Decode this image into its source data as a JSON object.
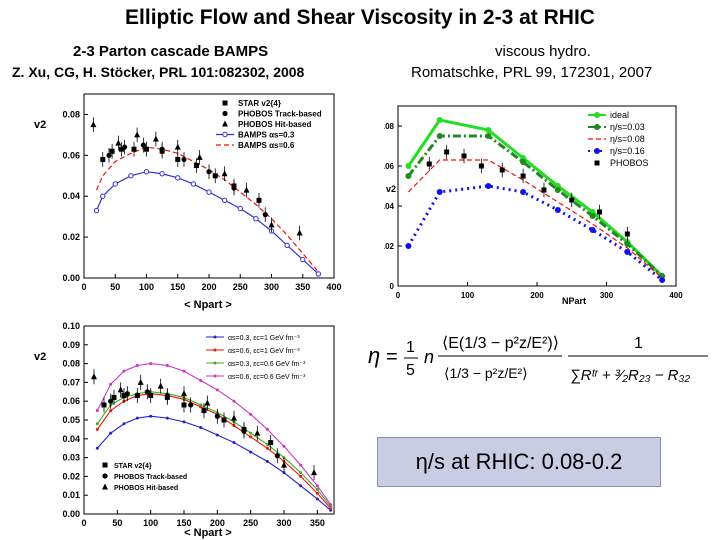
{
  "title": "Elliptic Flow and Shear Viscosity in 2-3 at RHIC",
  "left_header": {
    "line1": "2-3 Parton cascade BAMPS",
    "line2": "Z. Xu, CG, H. Stöcker, PRL 101:082302, 2008"
  },
  "right_header": {
    "line1": "viscous hydro.",
    "line2": "Romatschke, PRL 99, 172301, 2007"
  },
  "formula": {
    "description": "shear viscosity formula from 2-3 cascade",
    "eta": "η",
    "equals": "=",
    "one": "1",
    "five": "5",
    "n": "n",
    "R32": "R32",
    "R23": "R23",
    "Rtr": "Rtr"
  },
  "highlight": {
    "text": "η/s at RHIC: 0.08-0.2"
  },
  "colors": {
    "ideal": "#22dd22",
    "eta003": "#228822",
    "eta008": "#ee1111",
    "eta016": "#1111ee",
    "bamps": "#3333cc",
    "red": "#ee1111",
    "purple": "#cc33cc",
    "highlight_bg": "#c9cde4"
  },
  "chart_data": [
    {
      "id": "top-left",
      "type": "line",
      "title": "",
      "xlabel": "< Npart >",
      "ylabel": "v2",
      "xlim": [
        0,
        400
      ],
      "ylim": [
        0,
        0.09
      ],
      "xticks": [
        0,
        50,
        100,
        150,
        200,
        250,
        300,
        350,
        400
      ],
      "yticks": [
        0.0,
        0.02,
        0.04,
        0.06,
        0.08
      ],
      "ytick_labels": [
        "0.00",
        "0.02",
        "0.04",
        "0.06",
        "0.08"
      ],
      "legend": [
        "STAR v2{4}",
        "PHOBOS Track-based",
        "PHOBOS Hit-based",
        "BAMPS αs=0.3",
        "BAMPS αs=0.6"
      ],
      "series": [
        {
          "name": "BAMPS αs=0.3",
          "style": "blue-circle-line",
          "x": [
            20,
            30,
            50,
            75,
            100,
            125,
            150,
            175,
            200,
            225,
            250,
            275,
            300,
            325,
            350,
            375
          ],
          "y": [
            0.033,
            0.04,
            0.046,
            0.05,
            0.052,
            0.051,
            0.049,
            0.046,
            0.042,
            0.038,
            0.034,
            0.029,
            0.023,
            0.016,
            0.009,
            0.002
          ]
        },
        {
          "name": "BAMPS αs=0.6",
          "style": "red-dash",
          "x": [
            20,
            30,
            50,
            75,
            100,
            125,
            150,
            175,
            200,
            225,
            250,
            275,
            300,
            325,
            350,
            375
          ],
          "y": [
            0.043,
            0.05,
            0.057,
            0.061,
            0.064,
            0.063,
            0.061,
            0.057,
            0.053,
            0.048,
            0.042,
            0.036,
            0.029,
            0.021,
            0.012,
            0.003
          ]
        },
        {
          "name": "STAR v2{4}",
          "style": "square",
          "x": [
            30,
            45,
            60,
            80,
            100,
            125,
            150,
            180,
            210,
            240,
            280
          ],
          "y": [
            0.058,
            0.062,
            0.063,
            0.063,
            0.063,
            0.062,
            0.058,
            0.055,
            0.05,
            0.045,
            0.038
          ]
        },
        {
          "name": "PHOBOS Track-based",
          "style": "dot",
          "x": [
            40,
            65,
            95,
            125,
            160,
            200,
            240,
            290
          ],
          "y": [
            0.06,
            0.064,
            0.065,
            0.063,
            0.058,
            0.052,
            0.044,
            0.031
          ]
        },
        {
          "name": "PHOBOS Hit-based",
          "style": "triangle",
          "x": [
            15,
            55,
            85,
            115,
            150,
            185,
            225,
            260,
            300,
            345
          ],
          "y": [
            0.075,
            0.066,
            0.07,
            0.068,
            0.064,
            0.059,
            0.051,
            0.043,
            0.026,
            0.022
          ]
        }
      ]
    },
    {
      "id": "bottom-left",
      "type": "line",
      "title": "",
      "xlabel": "< Npart >",
      "ylabel": "v2",
      "xlim": [
        0,
        375
      ],
      "ylim": [
        0,
        0.1
      ],
      "xticks": [
        0,
        50,
        100,
        150,
        200,
        250,
        300,
        350
      ],
      "yticks": [
        0.0,
        0.01,
        0.02,
        0.03,
        0.04,
        0.05,
        0.06,
        0.07,
        0.08,
        0.09,
        0.1
      ],
      "ytick_labels": [
        "0.00",
        "0.01",
        "0.02",
        "0.03",
        "0.04",
        "0.05",
        "0.06",
        "0.07",
        "0.08",
        "0.09",
        "0.10"
      ],
      "legend": [
        "αs=0.3, εc=1 GeV fm⁻³",
        "αs=0.6, εc=1 GeV fm⁻³",
        "αs=0.3, εc=0.6 GeV fm⁻³",
        "αs=0.6, εc=0.6 GeV fm⁻³"
      ],
      "legend2": [
        "STAR v2{4}",
        "PHOBOS Track-based",
        "PHOBOS Hit-based"
      ],
      "series": [
        {
          "name": "αs=0.3, εc=1 GeV fm⁻³",
          "style": "blue",
          "x": [
            20,
            40,
            60,
            80,
            100,
            125,
            150,
            175,
            200,
            225,
            250,
            275,
            300,
            325,
            350,
            370
          ],
          "y": [
            0.035,
            0.043,
            0.048,
            0.051,
            0.052,
            0.051,
            0.049,
            0.046,
            0.042,
            0.038,
            0.033,
            0.028,
            0.022,
            0.015,
            0.008,
            0.002
          ]
        },
        {
          "name": "αs=0.6, εc=1 GeV fm⁻³",
          "style": "red",
          "x": [
            20,
            40,
            60,
            80,
            100,
            125,
            150,
            175,
            200,
            225,
            250,
            275,
            300,
            325,
            350,
            370
          ],
          "y": [
            0.045,
            0.055,
            0.06,
            0.063,
            0.064,
            0.063,
            0.061,
            0.057,
            0.053,
            0.047,
            0.041,
            0.035,
            0.028,
            0.02,
            0.011,
            0.003
          ]
        },
        {
          "name": "αs=0.3, εc=0.6 GeV fm⁻³",
          "style": "green",
          "x": [
            20,
            40,
            60,
            80,
            100,
            125,
            150,
            175,
            200,
            225,
            250,
            275,
            300,
            325,
            350,
            370
          ],
          "y": [
            0.048,
            0.058,
            0.062,
            0.064,
            0.065,
            0.064,
            0.062,
            0.058,
            0.054,
            0.049,
            0.043,
            0.037,
            0.03,
            0.022,
            0.013,
            0.004
          ]
        },
        {
          "name": "αs=0.6, εc=0.6 GeV fm⁻³",
          "style": "purple",
          "x": [
            20,
            40,
            60,
            80,
            100,
            125,
            150,
            175,
            200,
            225,
            250,
            275,
            300,
            325,
            350,
            370
          ],
          "y": [
            0.055,
            0.069,
            0.076,
            0.079,
            0.08,
            0.079,
            0.076,
            0.071,
            0.066,
            0.06,
            0.053,
            0.045,
            0.036,
            0.026,
            0.015,
            0.005
          ]
        },
        {
          "name": "STAR v2{4}",
          "style": "square",
          "x": [
            30,
            45,
            60,
            80,
            100,
            125,
            150,
            180,
            210,
            240,
            280
          ],
          "y": [
            0.058,
            0.062,
            0.063,
            0.063,
            0.063,
            0.062,
            0.058,
            0.055,
            0.05,
            0.045,
            0.038
          ]
        },
        {
          "name": "PHOBOS Track-based",
          "style": "dot",
          "x": [
            40,
            65,
            95,
            125,
            160,
            200,
            240,
            290
          ],
          "y": [
            0.06,
            0.064,
            0.065,
            0.063,
            0.058,
            0.052,
            0.044,
            0.031
          ]
        },
        {
          "name": "PHOBOS Hit-based",
          "style": "triangle",
          "x": [
            15,
            55,
            85,
            115,
            150,
            185,
            225,
            260,
            300,
            345
          ],
          "y": [
            0.073,
            0.066,
            0.07,
            0.068,
            0.064,
            0.059,
            0.051,
            0.043,
            0.026,
            0.022
          ]
        }
      ]
    },
    {
      "id": "top-right",
      "type": "line",
      "title": "",
      "xlabel": "NPart",
      "ylabel": "v2",
      "xlim": [
        0,
        400
      ],
      "ylim": [
        0,
        0.09
      ],
      "xticks": [
        0,
        100,
        200,
        300,
        400
      ],
      "yticks": [
        0,
        0.02,
        0.04,
        0.06,
        0.08
      ],
      "ytick_labels": [
        "0",
        "0.02",
        "0.04",
        "0.06",
        "0.08"
      ],
      "legend": [
        "ideal",
        "η/s=0.03",
        "η/s=0.08",
        "η/s=0.16",
        "PHOBOS"
      ],
      "series": [
        {
          "name": "ideal",
          "style": "green-solid",
          "x": [
            15,
            60,
            130,
            180,
            230,
            280,
            330,
            380
          ],
          "y": [
            0.06,
            0.083,
            0.078,
            0.064,
            0.05,
            0.037,
            0.022,
            0.005
          ]
        },
        {
          "name": "η/s=0.03",
          "style": "darkgreen-dashdot",
          "x": [
            15,
            60,
            130,
            180,
            230,
            280,
            330,
            380
          ],
          "y": [
            0.055,
            0.075,
            0.075,
            0.062,
            0.048,
            0.035,
            0.021,
            0.005
          ]
        },
        {
          "name": "η/s=0.08",
          "style": "red-dash",
          "x": [
            15,
            60,
            130,
            180,
            230,
            280,
            330,
            380
          ],
          "y": [
            0.047,
            0.063,
            0.063,
            0.053,
            0.042,
            0.031,
            0.019,
            0.004
          ]
        },
        {
          "name": "η/s=0.16",
          "style": "blue-dot",
          "x": [
            15,
            60,
            130,
            180,
            230,
            280,
            330,
            380
          ],
          "y": [
            0.02,
            0.047,
            0.05,
            0.047,
            0.038,
            0.028,
            0.017,
            0.003
          ]
        },
        {
          "name": "PHOBOS",
          "style": "square",
          "x": [
            45,
            70,
            95,
            120,
            150,
            180,
            210,
            250,
            290,
            330
          ],
          "y": [
            0.061,
            0.067,
            0.065,
            0.06,
            0.058,
            0.055,
            0.048,
            0.043,
            0.037,
            0.026
          ]
        }
      ]
    }
  ]
}
